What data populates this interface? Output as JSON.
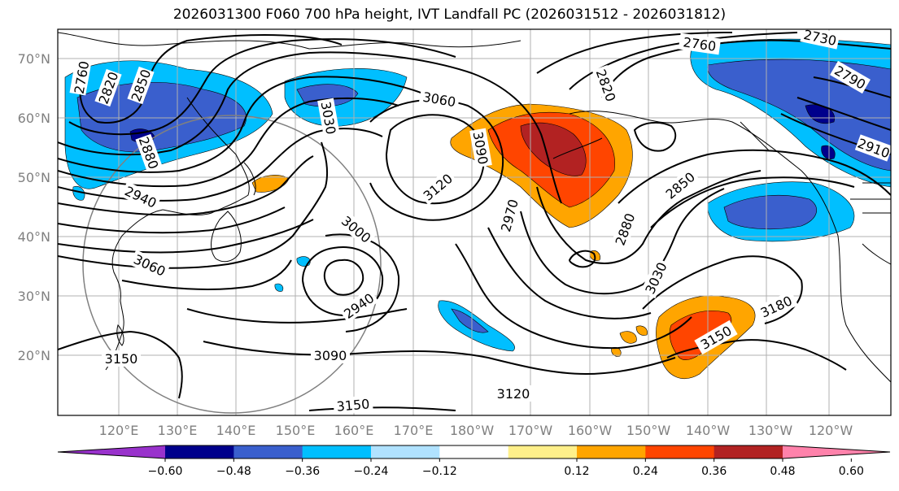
{
  "title": "2026031300 F060 700 hPa height, IVT Landfall PC (2026031512 - 2026031812)",
  "map": {
    "lat_labels": [
      "70°N",
      "60°N",
      "50°N",
      "40°N",
      "30°N",
      "20°N"
    ],
    "lon_labels": [
      "120°E",
      "130°E",
      "140°E",
      "150°E",
      "160°E",
      "170°E",
      "180°W",
      "170°W",
      "160°W",
      "150°W",
      "140°W",
      "130°W",
      "120°W"
    ],
    "contour_labels": [
      {
        "text": "2760",
        "id": "c2760a"
      },
      {
        "text": "2820",
        "id": "c2820a"
      },
      {
        "text": "2850",
        "id": "c2850a"
      },
      {
        "text": "2880",
        "id": "c2880a"
      },
      {
        "text": "2940",
        "id": "c2940a"
      },
      {
        "text": "3060",
        "id": "c3060a"
      },
      {
        "text": "3030",
        "id": "c3030a"
      },
      {
        "text": "3060",
        "id": "c3060b"
      },
      {
        "text": "3090",
        "id": "c3090a"
      },
      {
        "text": "3120",
        "id": "c3120a"
      },
      {
        "text": "3000",
        "id": "c3000a"
      },
      {
        "text": "2940",
        "id": "c2940b"
      },
      {
        "text": "3090",
        "id": "c3090b"
      },
      {
        "text": "3120",
        "id": "c3120b"
      },
      {
        "text": "3150",
        "id": "c3150a"
      },
      {
        "text": "3150",
        "id": "c3150b"
      },
      {
        "text": "2970",
        "id": "c2970a"
      },
      {
        "text": "2820",
        "id": "c2820b"
      },
      {
        "text": "2760",
        "id": "c2760b"
      },
      {
        "text": "2730",
        "id": "c2730a"
      },
      {
        "text": "2790",
        "id": "c2790a"
      },
      {
        "text": "2910",
        "id": "c2910a"
      },
      {
        "text": "2850",
        "id": "c2850b"
      },
      {
        "text": "2880",
        "id": "c2880b"
      },
      {
        "text": "3030",
        "id": "c3030b"
      },
      {
        "text": "3180",
        "id": "c3180a"
      },
      {
        "text": "3150",
        "id": "c3150c"
      }
    ]
  },
  "colorbar": {
    "colors": [
      "#9932cc",
      "#00008b",
      "#3a5fcd",
      "#00bfff",
      "#b0e2ff",
      "#ffffff",
      "#fff08a",
      "#ffa500",
      "#ff4500",
      "#b22222",
      "#ff82ab"
    ],
    "tick_labels": [
      "−0.60",
      "−0.48",
      "−0.36",
      "−0.24",
      "−0.12",
      "0.12",
      "0.24",
      "0.36",
      "0.48",
      "0.60"
    ]
  }
}
